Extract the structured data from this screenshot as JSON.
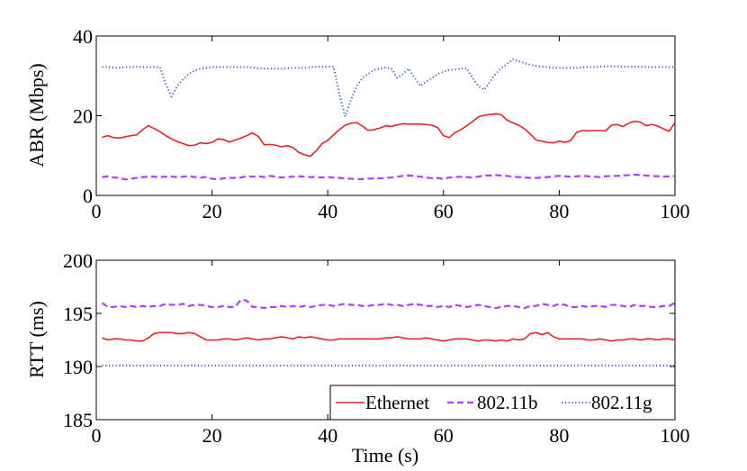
{
  "chart_data": [
    {
      "type": "line",
      "id": "abr",
      "title": "",
      "xlabel": "",
      "ylabel": "ABR (Mbps)",
      "xlim": [
        0,
        100
      ],
      "ylim": [
        0,
        40
      ],
      "xticks": [
        0,
        20,
        40,
        60,
        80,
        100
      ],
      "yticks": [
        0,
        20,
        40
      ],
      "xtick_labels": [
        "0",
        "20",
        "40",
        "60",
        "80",
        "100"
      ],
      "ytick_labels": [
        "0",
        "20",
        "40"
      ],
      "x": [
        1,
        2,
        3,
        4,
        5,
        6,
        7,
        8,
        9,
        10,
        11,
        12,
        13,
        14,
        15,
        16,
        17,
        18,
        19,
        20,
        21,
        22,
        23,
        24,
        25,
        26,
        27,
        28,
        29,
        30,
        31,
        32,
        33,
        34,
        35,
        36,
        37,
        38,
        39,
        40,
        41,
        42,
        43,
        44,
        45,
        46,
        47,
        48,
        49,
        50,
        51,
        52,
        53,
        54,
        55,
        56,
        57,
        58,
        59,
        60,
        61,
        62,
        63,
        64,
        65,
        66,
        67,
        68,
        69,
        70,
        71,
        72,
        73,
        74,
        75,
        76,
        77,
        78,
        79,
        80,
        81,
        82,
        83,
        84,
        85,
        86,
        87,
        88,
        89,
        90,
        91,
        92,
        93,
        94,
        95,
        96,
        97,
        98,
        99,
        100
      ],
      "series": [
        {
          "name": "Ethernet",
          "color": "#e8232a",
          "dash": "solid",
          "values": [
            14.6,
            15.0,
            14.5,
            14.4,
            14.7,
            15.0,
            15.2,
            16.5,
            17.5,
            16.8,
            16.0,
            15.0,
            14.2,
            13.5,
            13.0,
            12.5,
            12.6,
            13.2,
            13.0,
            13.3,
            14.2,
            14.0,
            13.4,
            13.9,
            14.4,
            15.0,
            15.7,
            14.8,
            12.7,
            12.8,
            12.6,
            12.2,
            12.5,
            12.0,
            10.8,
            10.2,
            9.8,
            11.2,
            13.0,
            13.8,
            15.2,
            16.5,
            17.6,
            18.1,
            18.3,
            17.4,
            16.3,
            16.5,
            16.9,
            17.5,
            17.3,
            17.7,
            18.0,
            17.9,
            17.9,
            17.9,
            17.8,
            17.6,
            17.0,
            15.0,
            14.5,
            15.8,
            16.5,
            17.5,
            18.5,
            19.7,
            20.1,
            20.3,
            20.5,
            20.2,
            18.9,
            18.2,
            17.6,
            16.7,
            15.4,
            13.9,
            13.6,
            13.3,
            13.2,
            13.6,
            13.3,
            13.8,
            15.8,
            16.3,
            16.2,
            16.3,
            16.3,
            16.2,
            17.6,
            17.8,
            17.3,
            18.1,
            18.6,
            18.4,
            17.5,
            17.8,
            17.4,
            16.7,
            16.1,
            18.3
          ]
        },
        {
          "name": "802.11b",
          "color": "#b43dff",
          "dash": "dashed",
          "values": [
            4.6,
            4.8,
            4.5,
            4.4,
            4.0,
            4.2,
            4.4,
            4.6,
            4.7,
            4.7,
            4.6,
            4.7,
            4.7,
            4.6,
            4.7,
            4.9,
            4.6,
            4.5,
            4.6,
            4.2,
            4.0,
            4.3,
            4.4,
            4.4,
            4.5,
            4.8,
            4.7,
            4.8,
            4.6,
            4.9,
            4.7,
            4.5,
            4.6,
            4.7,
            4.8,
            4.7,
            4.6,
            4.6,
            4.5,
            4.6,
            4.5,
            4.4,
            4.3,
            4.2,
            4.1,
            4.1,
            4.2,
            4.3,
            4.3,
            4.4,
            4.5,
            4.7,
            4.9,
            5.0,
            4.9,
            4.7,
            4.5,
            4.3,
            4.4,
            4.1,
            4.5,
            4.6,
            4.7,
            4.6,
            4.5,
            4.7,
            5.0,
            5.0,
            5.1,
            5.0,
            4.9,
            4.7,
            4.6,
            4.5,
            4.4,
            4.4,
            4.5,
            4.6,
            4.8,
            4.9,
            4.8,
            4.7,
            4.8,
            4.9,
            4.8,
            4.7,
            4.6,
            4.8,
            4.9,
            4.9,
            5.0,
            5.1,
            5.2,
            5.1,
            5.0,
            4.9,
            4.8,
            4.7,
            4.8,
            4.9
          ]
        },
        {
          "name": "802.11g",
          "color": "#3a5bd8",
          "dash": "dotted",
          "values": [
            32.2,
            32.2,
            32.1,
            32.0,
            32.2,
            32.2,
            32.3,
            32.2,
            32.2,
            32.2,
            32.2,
            28.0,
            24.8,
            27.5,
            29.2,
            30.5,
            31.3,
            31.8,
            32.0,
            32.2,
            32.2,
            32.2,
            32.2,
            32.2,
            32.2,
            32.2,
            32.1,
            31.9,
            31.8,
            31.8,
            31.8,
            31.8,
            31.9,
            32.0,
            32.0,
            32.0,
            32.2,
            32.3,
            32.3,
            32.3,
            32.3,
            25.5,
            19.8,
            24.0,
            27.5,
            29.5,
            30.5,
            31.5,
            31.8,
            32.1,
            31.8,
            29.5,
            30.5,
            31.8,
            29.5,
            27.5,
            28.5,
            29.5,
            30.5,
            31.0,
            31.5,
            31.6,
            31.8,
            31.9,
            29.5,
            27.5,
            26.5,
            28.5,
            30.5,
            32.0,
            33.0,
            34.2,
            33.7,
            33.2,
            32.8,
            32.5,
            32.3,
            32.2,
            32.0,
            32.0,
            32.0,
            32.0,
            32.0,
            32.1,
            32.2,
            32.2,
            32.3,
            32.4,
            32.4,
            32.4,
            32.3,
            32.3,
            32.3,
            32.3,
            32.2,
            32.2,
            32.2,
            32.2,
            32.2,
            32.2
          ]
        }
      ]
    },
    {
      "type": "line",
      "id": "rtt",
      "title": "",
      "xlabel": "Time (s)",
      "ylabel": "RTT (ms)",
      "xlim": [
        0,
        100
      ],
      "ylim": [
        185,
        200
      ],
      "xticks": [
        0,
        20,
        40,
        60,
        80,
        100
      ],
      "yticks": [
        185,
        190,
        195,
        200
      ],
      "xtick_labels": [
        "0",
        "20",
        "40",
        "60",
        "80",
        "100"
      ],
      "ytick_labels": [
        "185",
        "190",
        "195",
        "200"
      ],
      "x": [
        1,
        2,
        3,
        4,
        5,
        6,
        7,
        8,
        9,
        10,
        11,
        12,
        13,
        14,
        15,
        16,
        17,
        18,
        19,
        20,
        21,
        22,
        23,
        24,
        25,
        26,
        27,
        28,
        29,
        30,
        31,
        32,
        33,
        34,
        35,
        36,
        37,
        38,
        39,
        40,
        41,
        42,
        43,
        44,
        45,
        46,
        47,
        48,
        49,
        50,
        51,
        52,
        53,
        54,
        55,
        56,
        57,
        58,
        59,
        60,
        61,
        62,
        63,
        64,
        65,
        66,
        67,
        68,
        69,
        70,
        71,
        72,
        73,
        74,
        75,
        76,
        77,
        78,
        79,
        80,
        81,
        82,
        83,
        84,
        85,
        86,
        87,
        88,
        89,
        90,
        91,
        92,
        93,
        94,
        95,
        96,
        97,
        98,
        99,
        100
      ],
      "series": [
        {
          "name": "Ethernet",
          "color": "#e8232a",
          "dash": "solid",
          "values": [
            192.7,
            192.5,
            192.6,
            192.6,
            192.5,
            192.5,
            192.4,
            192.4,
            192.7,
            193.1,
            193.2,
            193.2,
            193.2,
            193.1,
            193.1,
            193.2,
            193.1,
            192.8,
            192.5,
            192.5,
            192.5,
            192.6,
            192.6,
            192.5,
            192.6,
            192.7,
            192.6,
            192.5,
            192.6,
            192.6,
            192.7,
            192.8,
            192.7,
            192.6,
            192.8,
            192.7,
            192.8,
            192.7,
            192.6,
            192.5,
            192.5,
            192.6,
            192.6,
            192.6,
            192.6,
            192.6,
            192.6,
            192.6,
            192.6,
            192.7,
            192.7,
            192.8,
            192.7,
            192.6,
            192.6,
            192.6,
            192.7,
            192.6,
            192.5,
            192.4,
            192.5,
            192.6,
            192.6,
            192.6,
            192.5,
            192.4,
            192.5,
            192.5,
            192.4,
            192.5,
            192.4,
            192.6,
            192.5,
            192.6,
            193.1,
            193.2,
            193.0,
            193.2,
            192.8,
            192.6,
            192.6,
            192.6,
            192.6,
            192.6,
            192.5,
            192.5,
            192.6,
            192.5,
            192.4,
            192.5,
            192.5,
            192.6,
            192.6,
            192.5,
            192.6,
            192.6,
            192.5,
            192.6,
            192.6,
            192.5
          ]
        },
        {
          "name": "802.11b",
          "color": "#b43dff",
          "dash": "dashed",
          "values": [
            196.0,
            195.6,
            195.6,
            195.7,
            195.6,
            195.7,
            195.6,
            195.7,
            195.6,
            195.7,
            195.7,
            195.9,
            195.8,
            195.8,
            195.9,
            195.7,
            195.8,
            195.8,
            195.7,
            195.6,
            195.6,
            195.7,
            195.6,
            195.6,
            196.3,
            196.2,
            195.6,
            195.6,
            195.5,
            195.6,
            195.6,
            195.7,
            195.6,
            195.7,
            195.6,
            195.7,
            195.6,
            195.7,
            195.8,
            195.8,
            195.7,
            195.8,
            195.9,
            195.8,
            195.8,
            195.7,
            195.7,
            195.8,
            195.8,
            195.9,
            195.8,
            195.8,
            195.7,
            195.8,
            195.9,
            195.8,
            195.7,
            195.7,
            195.6,
            195.7,
            195.6,
            195.8,
            195.7,
            195.6,
            195.7,
            195.8,
            195.7,
            195.6,
            195.5,
            195.6,
            195.7,
            195.7,
            195.6,
            195.5,
            195.7,
            195.7,
            195.9,
            195.8,
            195.7,
            195.9,
            195.8,
            195.6,
            195.6,
            195.7,
            195.6,
            195.7,
            195.7,
            195.6,
            195.8,
            195.8,
            195.7,
            195.6,
            195.8,
            195.7,
            195.7,
            195.6,
            195.6,
            195.7,
            195.7,
            196.0
          ]
        },
        {
          "name": "802.11g",
          "color": "#3a5bd8",
          "dash": "dotted",
          "values": [
            190.1,
            190.1,
            190.1,
            190.1,
            190.1,
            190.1,
            190.1,
            190.1,
            190.1,
            190.1,
            190.1,
            190.1,
            190.1,
            190.1,
            190.1,
            190.1,
            190.1,
            190.1,
            190.1,
            190.1,
            190.1,
            190.1,
            190.1,
            190.1,
            190.1,
            190.1,
            190.1,
            190.1,
            190.1,
            190.1,
            190.1,
            190.1,
            190.1,
            190.1,
            190.1,
            190.1,
            190.1,
            190.1,
            190.1,
            190.1,
            190.1,
            190.1,
            190.1,
            190.1,
            190.1,
            190.1,
            190.1,
            190.1,
            190.1,
            190.1,
            190.1,
            190.1,
            190.1,
            190.1,
            190.1,
            190.1,
            190.1,
            190.1,
            190.1,
            190.1,
            190.1,
            190.1,
            190.1,
            190.1,
            190.1,
            190.1,
            190.1,
            190.1,
            190.1,
            190.1,
            190.1,
            190.1,
            190.1,
            190.1,
            190.1,
            190.1,
            190.1,
            190.1,
            190.1,
            190.1,
            190.1,
            190.1,
            190.1,
            190.1,
            190.1,
            190.1,
            190.1,
            190.1,
            190.1,
            190.1,
            190.1,
            190.1,
            190.1,
            190.1,
            190.1,
            190.1,
            190.1,
            190.1,
            190.1,
            190.1
          ]
        }
      ],
      "legend": {
        "placement": "bottom-right",
        "entries": [
          "Ethernet",
          "802.11b",
          "802.11g"
        ]
      }
    }
  ]
}
